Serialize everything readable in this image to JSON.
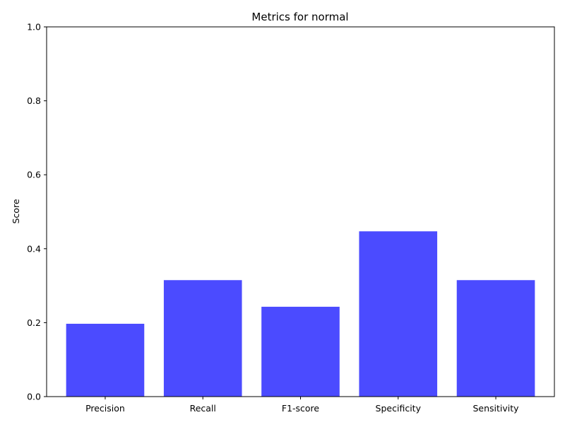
{
  "chart_data": {
    "type": "bar",
    "title": "Metrics for normal",
    "xlabel": "",
    "ylabel": "Score",
    "categories": [
      "Precision",
      "Recall",
      "F1-score",
      "Specificity",
      "Sensitivity"
    ],
    "values": [
      0.197,
      0.315,
      0.243,
      0.447,
      0.315
    ],
    "ylim": [
      0,
      1
    ],
    "yticks": [
      0.0,
      0.2,
      0.4,
      0.6,
      0.8,
      1.0
    ],
    "ytick_labels": [
      "0.0",
      "0.2",
      "0.4",
      "0.6",
      "0.8",
      "1.0"
    ],
    "grid": false,
    "legend": "none",
    "bar_color": "#4b4bff"
  }
}
